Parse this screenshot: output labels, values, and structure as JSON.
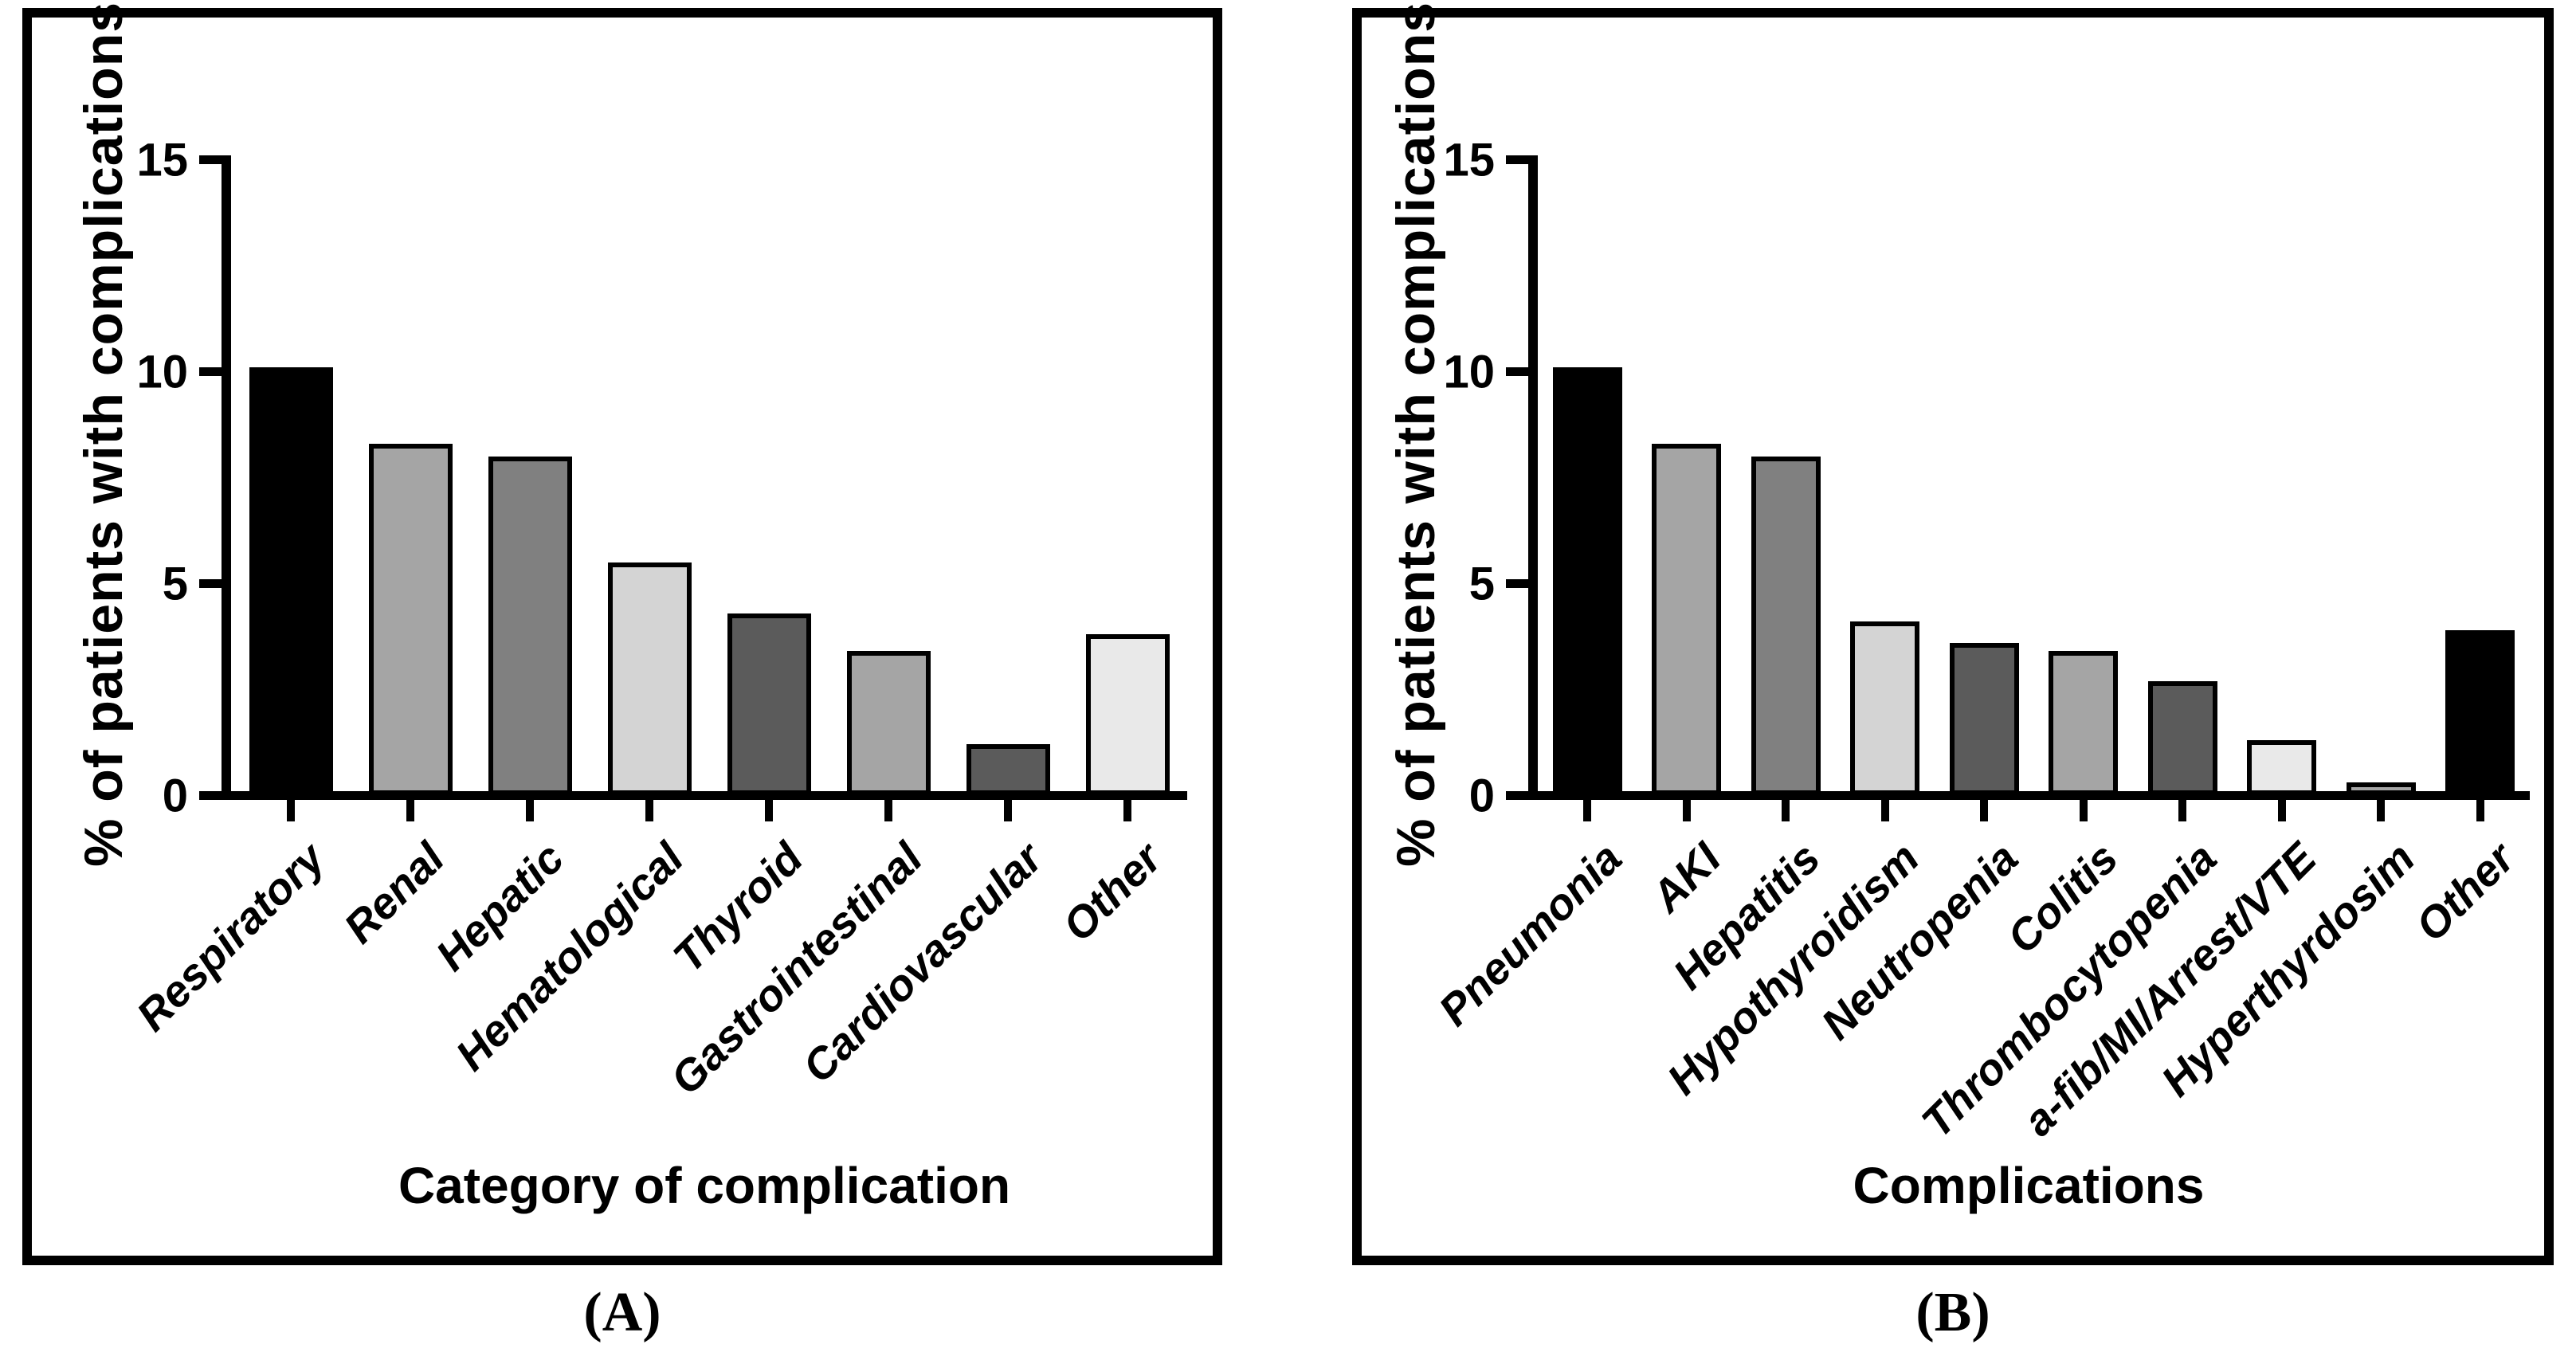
{
  "figure": {
    "panel_a_letter": "(A)",
    "panel_b_letter": "(B)",
    "background_color": "#ffffff",
    "axis_color": "#000000"
  },
  "chart_data": [
    {
      "panel": "A",
      "type": "bar",
      "title": "",
      "xlabel": "Category of complication",
      "ylabel": "% of patients with complications",
      "categories": [
        "Respiratory",
        "Renal",
        "Hepatic",
        "Hematological",
        "Thyroid",
        "Gastrointestinal",
        "Cardiovascular",
        "Other"
      ],
      "values": [
        10.0,
        8.2,
        7.9,
        5.4,
        4.2,
        3.3,
        1.1,
        3.7
      ],
      "bar_colors": [
        "#000000",
        "#a5a5a5",
        "#808080",
        "#d4d4d4",
        "#5b5b5b",
        "#a5a5a5",
        "#5b5b5b",
        "#e9e9e9"
      ],
      "bar_outline_color": "#000000",
      "yticks": [
        0,
        5,
        10,
        15
      ],
      "ylim": [
        0,
        15
      ],
      "grid": false,
      "legend": "none",
      "category_label_rotation_deg": 45
    },
    {
      "panel": "B",
      "type": "bar",
      "title": "",
      "xlabel": "Complications",
      "ylabel": "% of patients with complications",
      "categories": [
        "Pneumonia",
        "AKI",
        "Hepatitis",
        "Hypothyroidism",
        "Neutropenia",
        "Colitis",
        "Thrombocytopenia",
        "a-fib/MI/Arrest/VTE",
        "Hyperthyrdosim",
        "Other"
      ],
      "values": [
        10.0,
        8.2,
        7.9,
        4.0,
        3.5,
        3.3,
        2.6,
        1.2,
        0.2,
        3.8
      ],
      "bar_colors": [
        "#000000",
        "#a5a5a5",
        "#808080",
        "#d4d4d4",
        "#5b5b5b",
        "#a5a5a5",
        "#5b5b5b",
        "#e9e9e9",
        "#a5a5a5",
        "#000000"
      ],
      "bar_outline_color": "#000000",
      "yticks": [
        0,
        5,
        10,
        15
      ],
      "ylim": [
        0,
        15
      ],
      "grid": false,
      "legend": "none",
      "category_label_rotation_deg": 45
    }
  ]
}
